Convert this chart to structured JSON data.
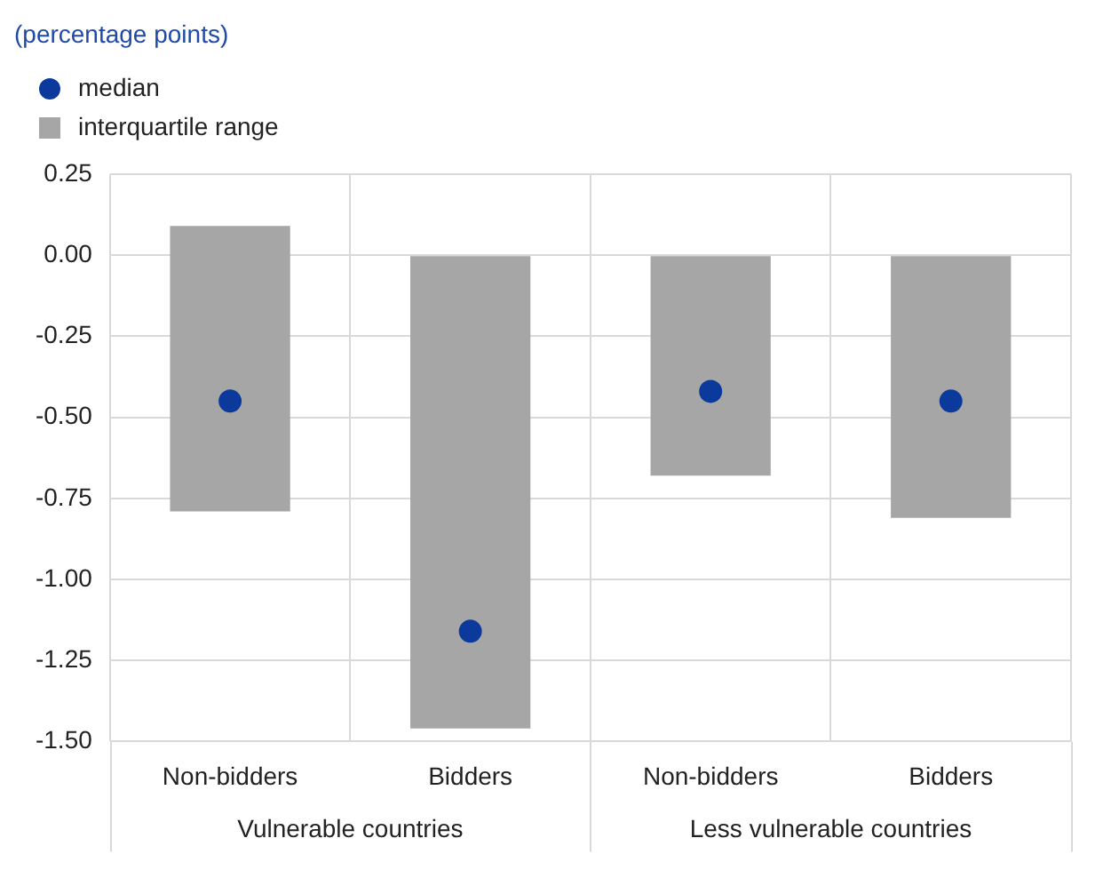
{
  "chart_data": {
    "type": "bar",
    "ylabel": "(percentage points)",
    "categories": [
      "Non-bidders",
      "Bidders",
      "Non-bidders",
      "Bidders"
    ],
    "series": [
      {
        "name": "median",
        "type": "scatter",
        "color": "#0b3a9c",
        "values": [
          -0.45,
          -1.16,
          -0.42,
          -0.45
        ]
      },
      {
        "name": "interquartile range",
        "color": "#a6a6a6",
        "base": [
          -0.79,
          -1.46,
          -0.68,
          -0.81
        ],
        "values": [
          0.88,
          1.46,
          0.68,
          0.81
        ]
      }
    ],
    "ylim": [
      -1.5,
      0.25
    ],
    "yticks": [
      {
        "value": 0.25,
        "label": "0.25"
      },
      {
        "value": 0,
        "label": "0.00"
      },
      {
        "value": -0.25,
        "label": "-0.25"
      },
      {
        "value": -0.5,
        "label": "-0.50"
      },
      {
        "value": -0.75,
        "label": "-0.75"
      },
      {
        "value": -1,
        "label": "-1.00"
      },
      {
        "value": -1.25,
        "label": "-1.25"
      },
      {
        "value": -1.5,
        "label": "-1.50"
      }
    ],
    "grid": true,
    "legend": "top left",
    "marker": "circle",
    "annotations": [
      "Vulnerable countries",
      "Less vulnerable countries"
    ]
  }
}
